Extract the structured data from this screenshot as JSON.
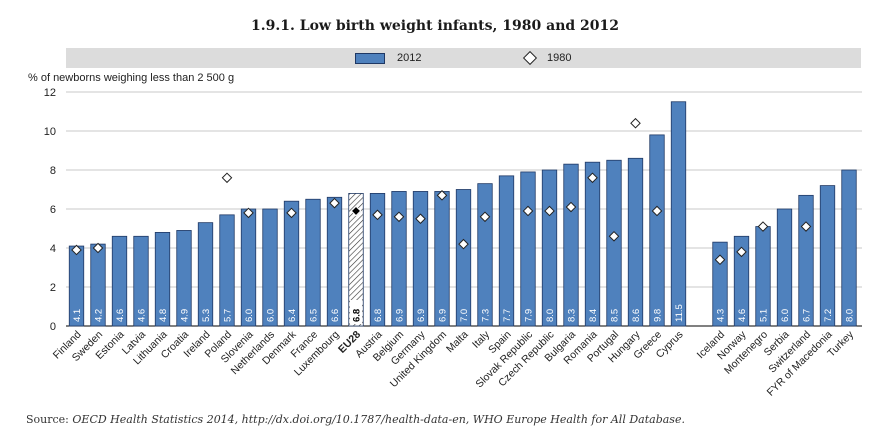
{
  "title": "1.9.1.   Low birth weight infants, 1980 and 2012",
  "legend": {
    "label_2012": "2012",
    "label_1980": "1980"
  },
  "source": {
    "label": "Source:",
    "text": "OECD Health Statistics 2014, http://dx.doi.org/10.1787/health-data-en, WHO Europe Health for All Database."
  },
  "colors": {
    "bar": "#4f81bd",
    "bar_edge": "#1f3864",
    "gridline": "#c8c8c8"
  },
  "chart_data": {
    "type": "bar",
    "ylabel": "% of newborns weighing less than 2 500 g",
    "ylim": [
      0,
      12
    ],
    "yticks": [
      0,
      2,
      4,
      6,
      8,
      10,
      12
    ],
    "grid": true,
    "legend_position": "top",
    "highlighted_category": "EU28",
    "categories": [
      "Finland",
      "Sweden",
      "Estonia",
      "Latvia",
      "Lithuania",
      "Croatia",
      "Ireland",
      "Poland",
      "Slovenia",
      "Netherlands",
      "Denmark",
      "France",
      "Luxembourg",
      "EU28",
      "Austria",
      "Belgium",
      "Germany",
      "United Kingdom",
      "Malta",
      "Italy",
      "Spain",
      "Slovak Republic",
      "Czech Republic",
      "Bulgaria",
      "Romania",
      "Portugal",
      "Hungary",
      "Greece",
      "Cyprus",
      "Iceland",
      "Norway",
      "Montenegro",
      "Serbia",
      "Switzerland",
      "FYR of Macedonia",
      "Turkey"
    ],
    "groups": [
      29,
      7
    ],
    "series": [
      {
        "name": "2012",
        "marker": "bar",
        "values": [
          4.1,
          4.2,
          4.6,
          4.6,
          4.8,
          4.9,
          5.3,
          5.7,
          6.0,
          6.0,
          6.4,
          6.5,
          6.6,
          6.8,
          6.8,
          6.9,
          6.9,
          6.9,
          7.0,
          7.3,
          7.7,
          7.9,
          8.0,
          8.3,
          8.4,
          8.5,
          8.6,
          9.8,
          11.5,
          4.3,
          4.6,
          5.1,
          6.0,
          6.7,
          7.2,
          8.0
        ],
        "labels": [
          "4.1",
          "4.2",
          "4.6",
          "4.6",
          "4.8",
          "4.9",
          "5.3",
          "5.7",
          "6.0",
          "6.0",
          "6.4",
          "6.5",
          "6.6",
          "6.8",
          "6.8",
          "6.9",
          "6.9",
          "6.9",
          "7.0",
          "7.3",
          "7.7",
          "7.9",
          "8.0",
          "8.3",
          "8.4",
          "8.5",
          "8.6",
          "9.8",
          "11.5",
          "4.3",
          "4.6",
          "5.1",
          "6.0",
          "6.7",
          "7.2",
          "8.0"
        ]
      },
      {
        "name": "1980",
        "marker": "diamond",
        "values": [
          3.9,
          4.0,
          null,
          null,
          null,
          null,
          null,
          7.6,
          5.8,
          null,
          5.8,
          null,
          6.3,
          5.9,
          5.7,
          5.6,
          5.5,
          6.7,
          4.2,
          5.6,
          null,
          5.9,
          5.9,
          6.1,
          7.6,
          4.6,
          10.4,
          5.9,
          null,
          3.4,
          3.8,
          5.1,
          null,
          5.1,
          null,
          null
        ]
      }
    ]
  }
}
